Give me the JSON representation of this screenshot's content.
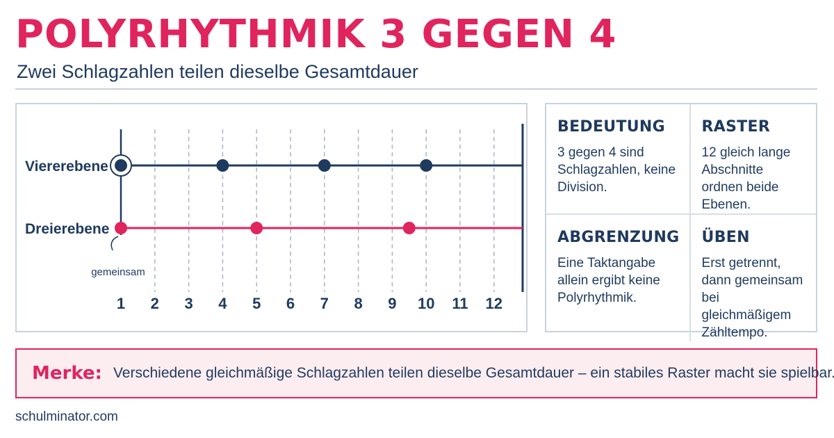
{
  "header": {
    "title": "POLYRHYTHMIK 3 GEGEN 4",
    "subtitle": "Zwei Schlagzahlen teilen dieselbe Gesamtdauer"
  },
  "diagram": {
    "grid_labels": [
      "1",
      "2",
      "3",
      "4",
      "5",
      "6",
      "7",
      "8",
      "9",
      "10",
      "11",
      "12"
    ],
    "grid_count": 12,
    "common_label": "gemeinsam",
    "lanes": [
      {
        "label": "Viererebene",
        "beats": [
          1,
          4,
          7,
          10
        ],
        "color": "#1f3a5f"
      },
      {
        "label": "Dreierebene",
        "beats": [
          1,
          5,
          9.5
        ],
        "color": "#e0245e"
      }
    ]
  },
  "cards": [
    {
      "title": "BEDEUTUNG",
      "body": "3 gegen 4 sind Schlagzahlen, keine Division."
    },
    {
      "title": "RASTER",
      "body": "12 gleich lange Abschnitte ordnen beide Ebenen."
    },
    {
      "title": "ABGRENZUNG",
      "body": "Eine Taktangabe allein ergibt keine Polyrhythmik."
    },
    {
      "title": "ÜBEN",
      "body": "Erst getrennt, dann gemeinsam bei gleichmäßigem Zähltempo."
    }
  ],
  "merke": {
    "label": "Merke:",
    "text": "Verschiedene gleichmäßige Schlagzahlen teilen dieselbe Gesamtdauer – ein stabiles Raster macht sie spielbar."
  },
  "footer": {
    "text": "schulminator.com"
  },
  "colors": {
    "accent": "#e0245e",
    "navy": "#1f3a5f",
    "panel_border": "#c8d2de",
    "merke_bg": "#fcedf1"
  }
}
